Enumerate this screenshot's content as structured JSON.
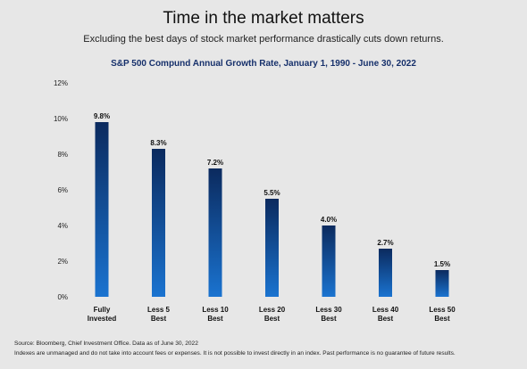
{
  "header": {
    "title": "Time in the market matters",
    "subtitle": "Excluding the best days of stock market performance drastically cuts down returns."
  },
  "chart_data": {
    "type": "bar",
    "title": "S&P 500 Compund Annual Growth Rate, January 1, 1990 - June 30, 2022",
    "xlabel": "",
    "ylabel": "",
    "categories": [
      [
        "Fully",
        "Invested"
      ],
      [
        "Less 5",
        "Best"
      ],
      [
        "Less 10",
        "Best"
      ],
      [
        "Less 20",
        "Best"
      ],
      [
        "Less 30",
        "Best"
      ],
      [
        "Less 40",
        "Best"
      ],
      [
        "Less 50",
        "Best"
      ]
    ],
    "values": [
      9.8,
      8.3,
      7.2,
      5.5,
      4.0,
      2.7,
      1.5
    ],
    "data_labels": [
      "9.8%",
      "8.3%",
      "7.2%",
      "5.5%",
      "4.0%",
      "2.7%",
      "1.5%"
    ],
    "ylim": [
      0,
      12
    ],
    "yticks": [
      0,
      2,
      4,
      6,
      8,
      10,
      12
    ],
    "ytick_labels": [
      "0%",
      "2%",
      "4%",
      "6%",
      "8%",
      "10%",
      "12%"
    ],
    "grid": false,
    "colors": {
      "bar_top": "#0b2a5e",
      "bar_bottom": "#1a73d0"
    }
  },
  "footer": {
    "source": "Source: Bloomberg, Chief Investment Office. Data as of June 30, 2022",
    "disclaimer": "Indexes are unmanaged and do not take into account fees or expenses. It is not possible to invest directly in an index. Past performance is no guarantee of future results."
  }
}
